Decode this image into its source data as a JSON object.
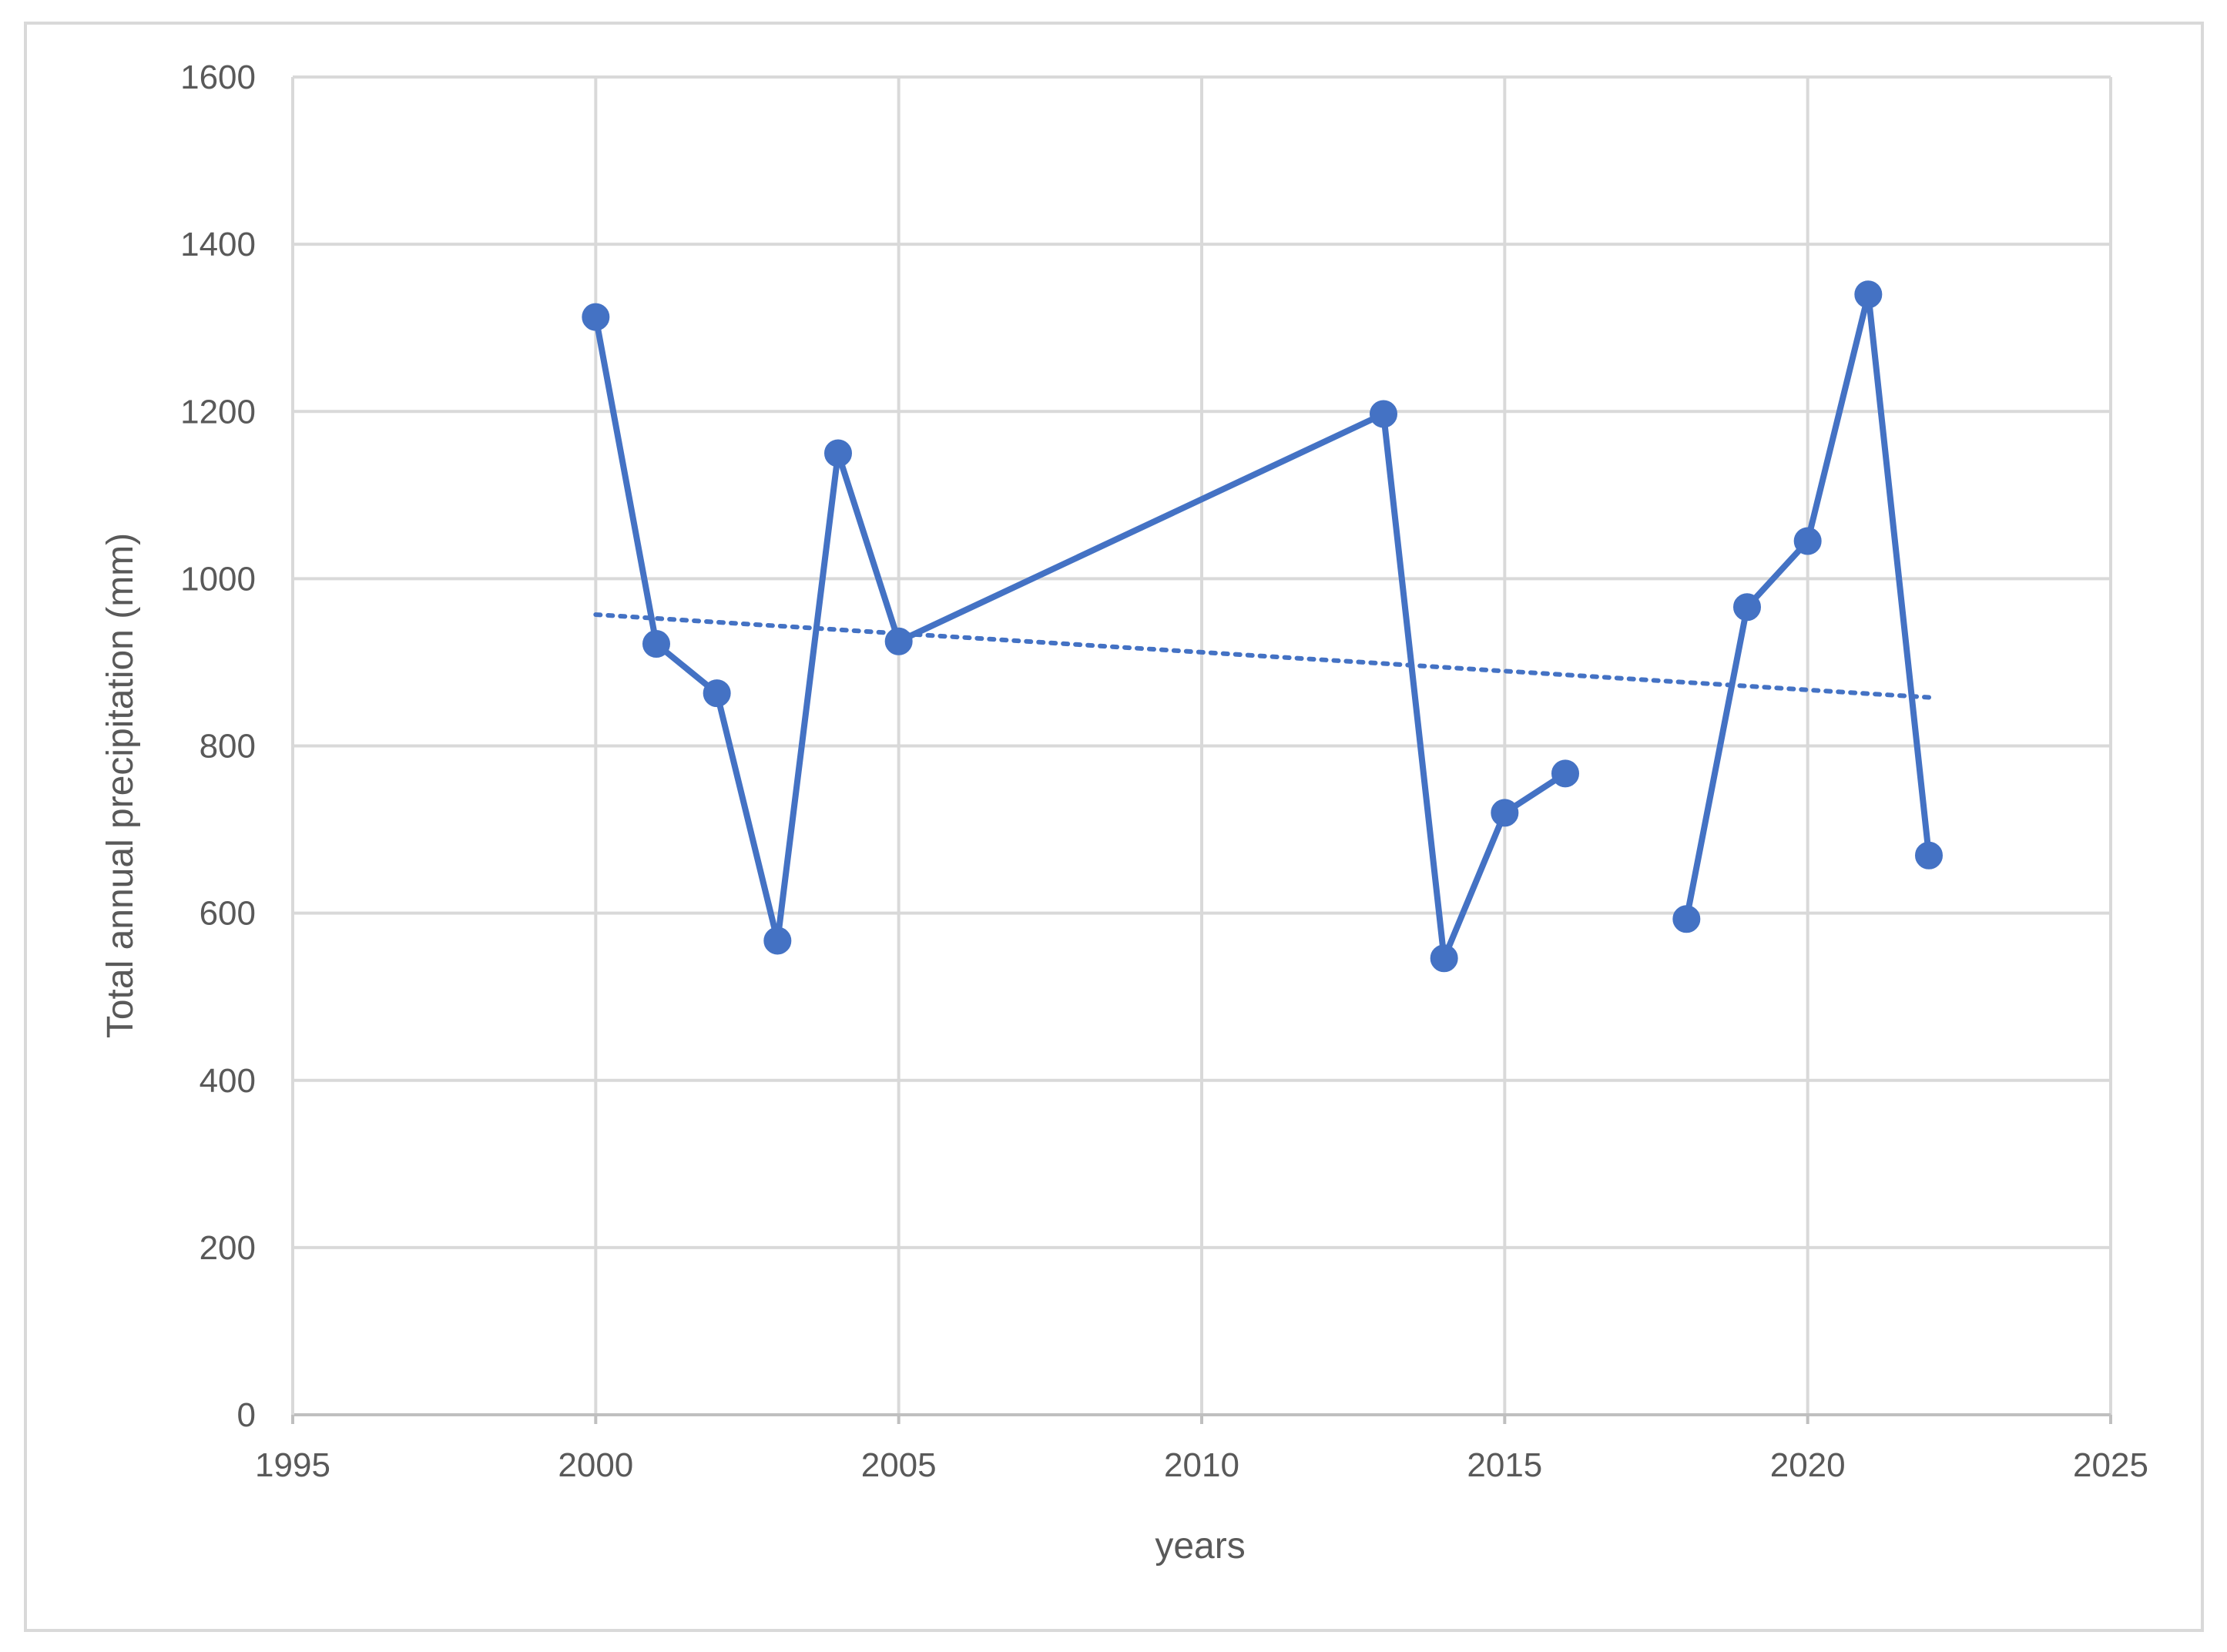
{
  "chart_data": {
    "type": "scatter",
    "title": "",
    "xlabel": "years",
    "ylabel": "Total annual precipitation (mm)",
    "xlim": [
      1995,
      2025
    ],
    "ylim": [
      0,
      1600
    ],
    "x_ticks": [
      "1995",
      "2000",
      "2005",
      "2010",
      "2015",
      "2020",
      "2025"
    ],
    "y_ticks": [
      "0",
      "200",
      "400",
      "600",
      "800",
      "1000",
      "1200",
      "1400",
      "1600"
    ],
    "grid": true,
    "legend": "none",
    "series": [
      {
        "color": "#4472c4",
        "style": "line-with-markers",
        "segments": [
          [
            {
              "x": 2000,
              "y": 1313
            },
            {
              "x": 2001,
              "y": 922
            },
            {
              "x": 2002,
              "y": 863
            },
            {
              "x": 2003,
              "y": 567
            },
            {
              "x": 2004,
              "y": 1150
            },
            {
              "x": 2005,
              "y": 925
            },
            {
              "x": 2013,
              "y": 1197
            },
            {
              "x": 2014,
              "y": 546
            },
            {
              "x": 2015,
              "y": 720
            },
            {
              "x": 2016,
              "y": 767
            }
          ],
          [
            {
              "x": 2018,
              "y": 593
            },
            {
              "x": 2019,
              "y": 966
            },
            {
              "x": 2020,
              "y": 1045
            },
            {
              "x": 2021,
              "y": 1340
            },
            {
              "x": 2022,
              "y": 669
            }
          ]
        ]
      }
    ],
    "trendline": {
      "type": "linear",
      "style": "dotted",
      "color": "#4472c4",
      "x": [
        2000,
        2022
      ],
      "y": [
        957,
        858
      ]
    }
  }
}
